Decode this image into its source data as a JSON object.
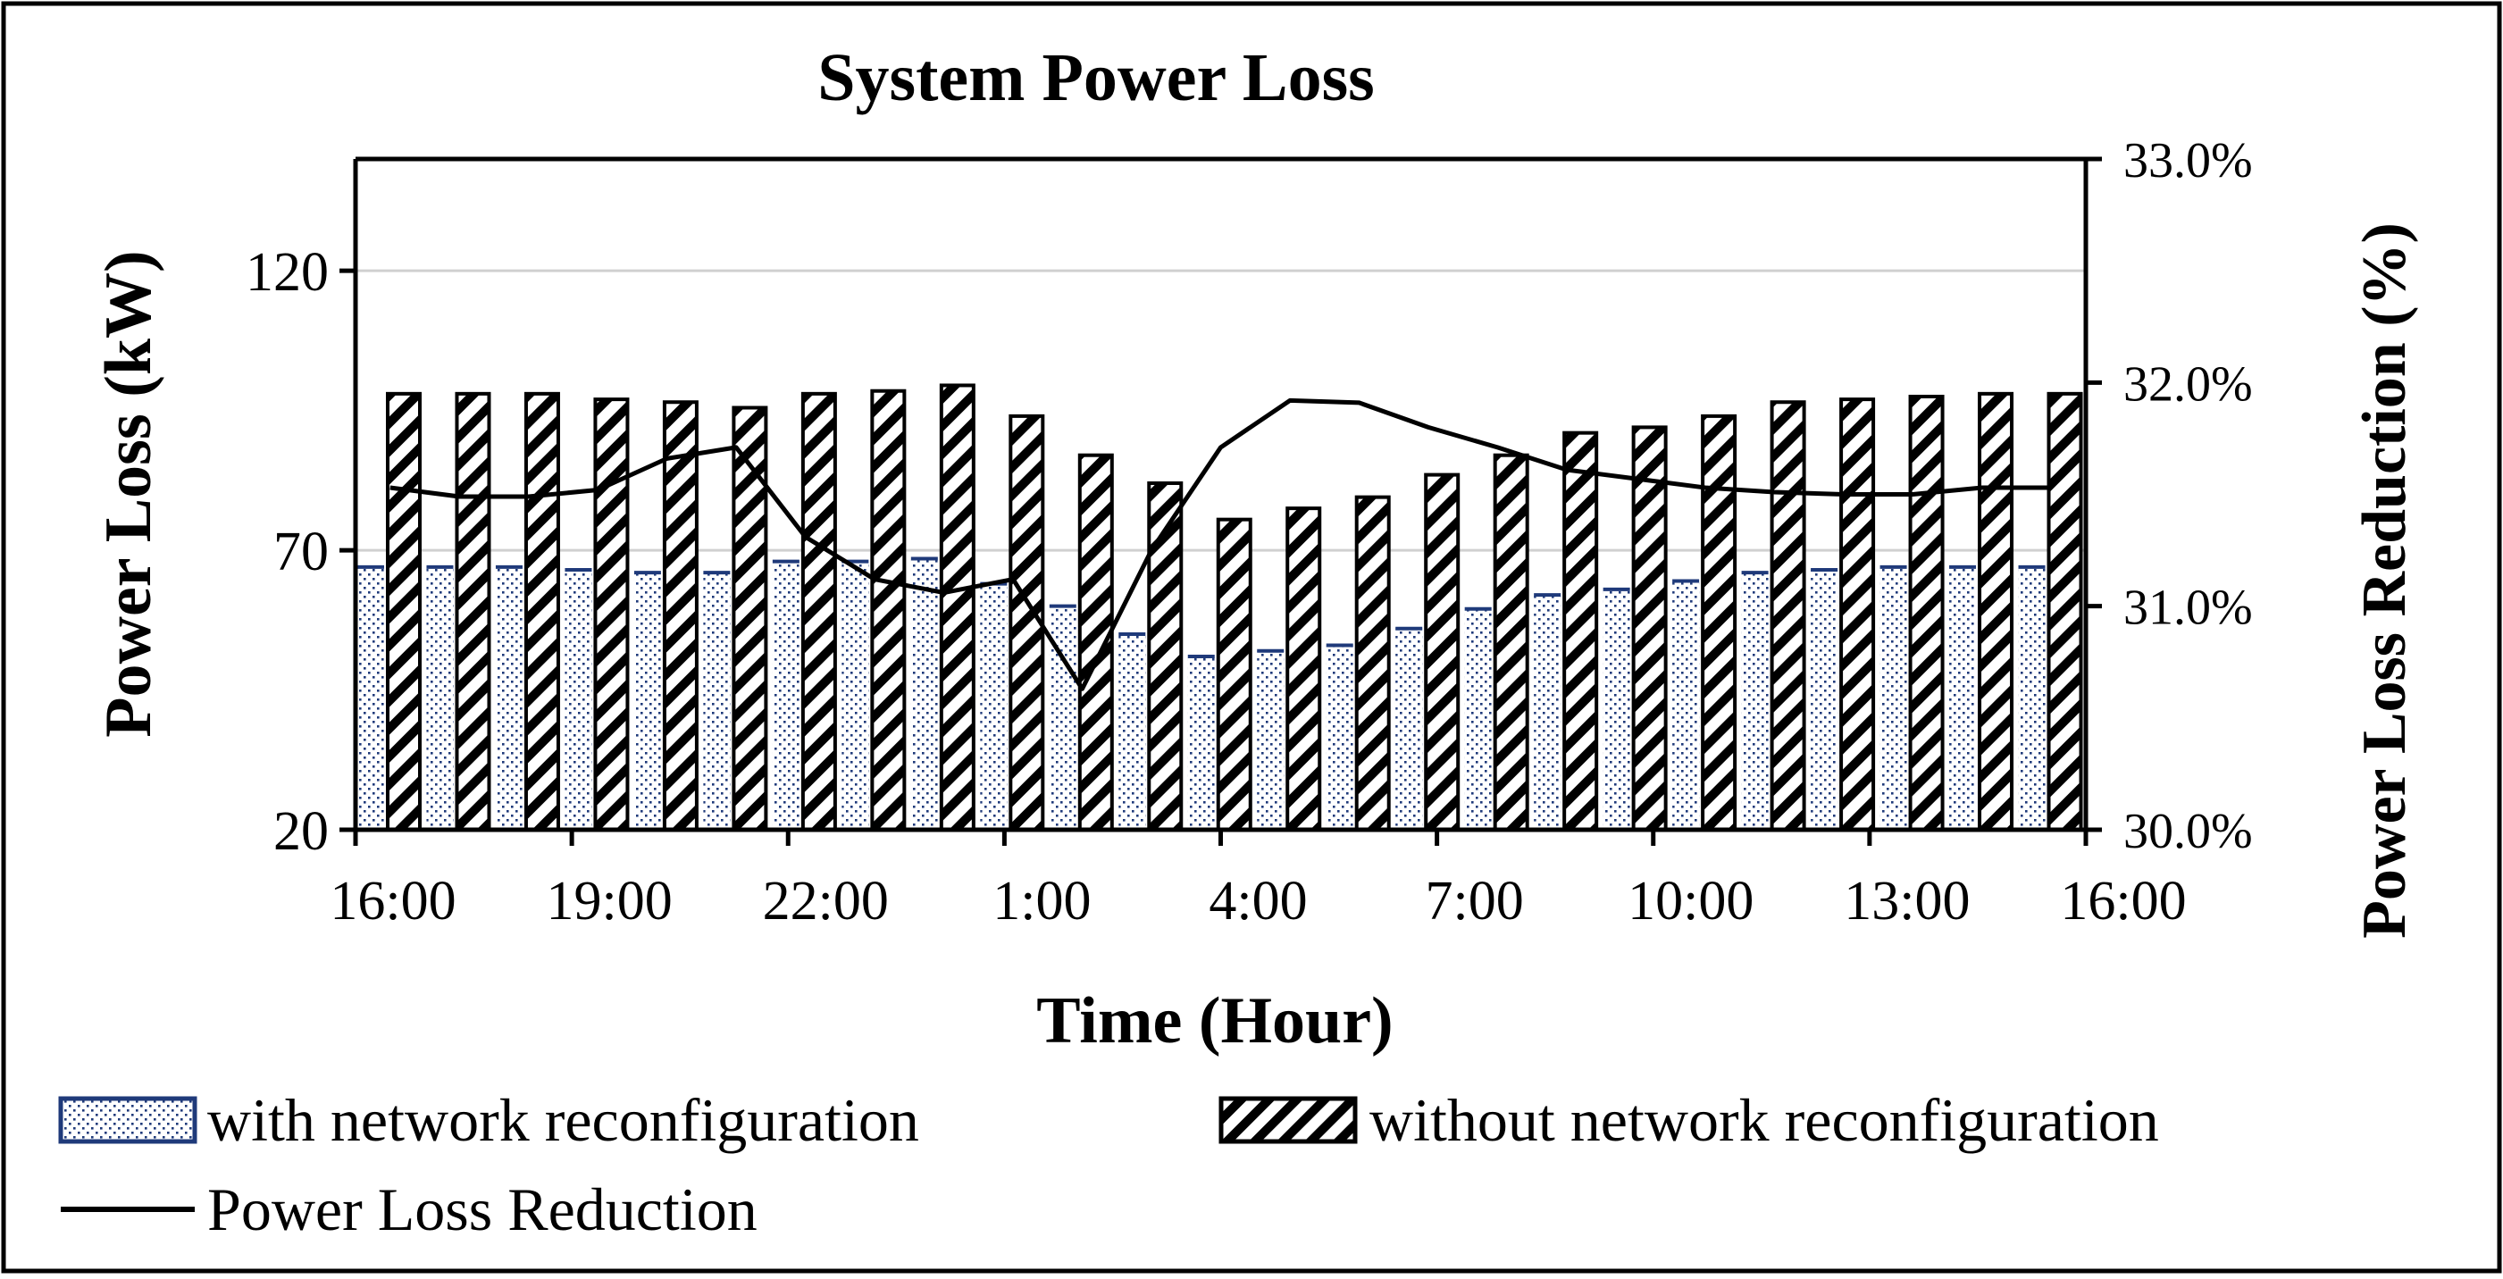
{
  "chart_data": {
    "type": "bar",
    "title": "System Power Loss",
    "xlabel": "Time (Hour)",
    "ylabel": "Power Loss (kW)",
    "y2label": "Power Loss Reduction (%)",
    "ylim": [
      20,
      140
    ],
    "y2lim": [
      0.3,
      0.33
    ],
    "yticks": [
      20,
      70,
      120
    ],
    "y2ticks": [
      "30.0%",
      "31.0%",
      "32.0%",
      "33.0%"
    ],
    "xtick_labels": [
      "16:00",
      "19:00",
      "22:00",
      "1:00",
      "4:00",
      "7:00",
      "10:00",
      "13:00",
      "16:00"
    ],
    "grid": "horizontal",
    "legend_position": "bottom",
    "categories": [
      "16:00",
      "17:00",
      "18:00",
      "19:00",
      "20:00",
      "21:00",
      "22:00",
      "23:00",
      "0:00",
      "1:00",
      "2:00",
      "3:00",
      "4:00",
      "5:00",
      "6:00",
      "7:00",
      "8:00",
      "9:00",
      "10:00",
      "11:00",
      "12:00",
      "13:00",
      "14:00",
      "15:00",
      "16:00"
    ],
    "series": [
      {
        "name": "with network reconfiguration",
        "kind": "bar",
        "pattern": "dotted",
        "color": "#1f3a7a",
        "values": [
          67,
          67,
          67,
          66.5,
          66,
          66,
          68,
          68,
          68.5,
          64,
          60,
          55,
          51,
          52,
          53,
          56,
          59.5,
          62,
          63,
          64.5,
          66,
          66.5,
          67,
          67,
          67
        ]
      },
      {
        "name": "without network reconfiguration",
        "kind": "bar",
        "pattern": "hatched",
        "color": "#000000",
        "values": [
          98,
          98,
          98,
          97,
          96.5,
          95.5,
          98,
          98.5,
          99.5,
          94,
          87,
          82,
          75.5,
          77.5,
          79.5,
          83.5,
          87,
          91,
          92,
          94,
          96.5,
          97,
          97.5,
          98,
          98
        ]
      },
      {
        "name": "Power Loss Reduction",
        "kind": "line",
        "axis": "right",
        "color": "#000000",
        "values": [
          0.3153,
          0.3149,
          0.3149,
          0.3152,
          0.3166,
          0.3171,
          0.3131,
          0.3112,
          0.3106,
          0.3112,
          0.3063,
          0.3125,
          0.3171,
          0.3192,
          0.3191,
          0.318,
          0.3171,
          0.3161,
          0.3157,
          0.3153,
          0.3151,
          0.315,
          0.315,
          0.3153,
          0.3153
        ]
      }
    ]
  }
}
